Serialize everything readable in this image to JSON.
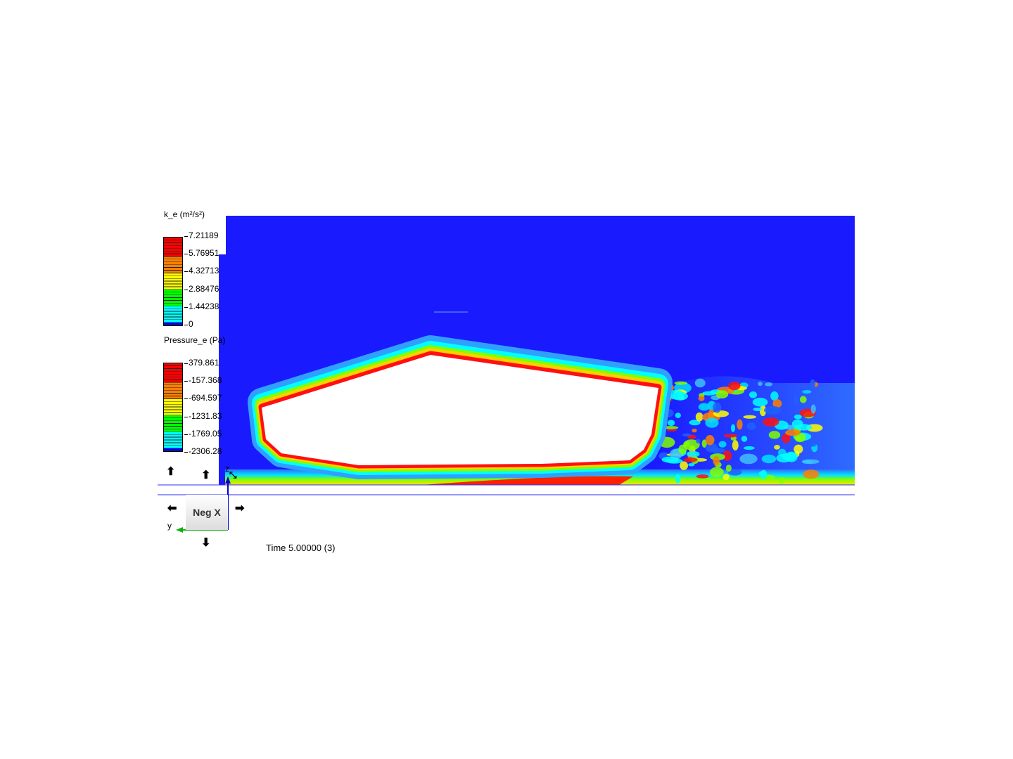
{
  "legends": [
    {
      "title": "k_e (m²/s²)",
      "ticks": [
        "7.21189",
        "5.76951",
        "4.32713",
        "2.88476",
        "1.44238",
        "0"
      ]
    },
    {
      "title": "Pressure_e (Pa)",
      "ticks": [
        "379.861",
        "-157.368",
        "-694.597",
        "-1231.83",
        "-1769.05",
        "-2306.28"
      ]
    }
  ],
  "colormap": [
    "#ff0000",
    "#ff8000",
    "#ffff00",
    "#00ff00",
    "#00ffff",
    "#0000ff"
  ],
  "background_color": "#1a1aff",
  "view_cube": {
    "label": "Neg X",
    "axis_z": "z",
    "axis_y": "y"
  },
  "time_label": "Time 5.00000 (3)"
}
